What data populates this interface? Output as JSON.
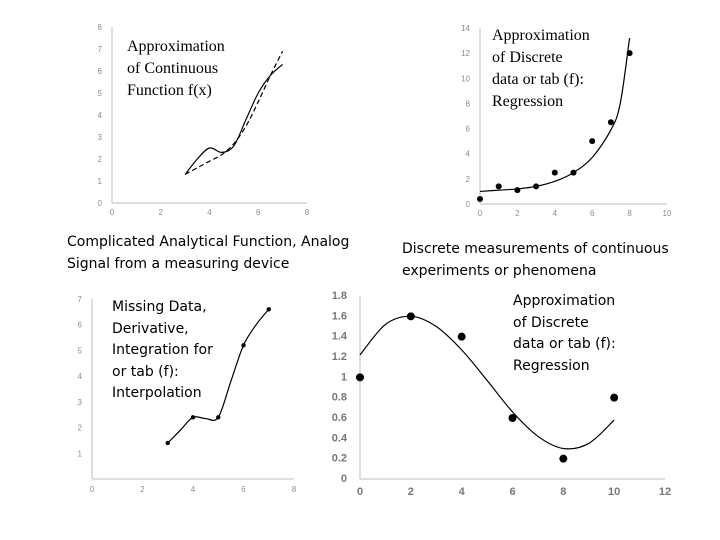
{
  "chart_data": [
    {
      "type": "line",
      "title": "Approximation of Continuous Function f(x)",
      "xlim": [
        0,
        8
      ],
      "ylim": [
        0,
        8
      ],
      "xticks": [
        "0",
        "2",
        "4",
        "6",
        "8"
      ],
      "yticks": [
        "0",
        "1",
        "2",
        "3",
        "4",
        "5",
        "6",
        "7",
        "8"
      ],
      "series": [
        {
          "style": "solid",
          "x": [
            3,
            3.5,
            4,
            4.5,
            5,
            5.5,
            6,
            6.5,
            7
          ],
          "y": [
            1.3,
            2.0,
            2.5,
            2.3,
            2.6,
            3.8,
            5.0,
            5.8,
            6.3
          ]
        },
        {
          "style": "dashed",
          "x": [
            3,
            3.5,
            4,
            4.5,
            5,
            5.5,
            6,
            6.5,
            7
          ],
          "y": [
            1.3,
            1.6,
            1.9,
            2.2,
            2.7,
            3.5,
            4.6,
            5.8,
            6.9
          ]
        }
      ]
    },
    {
      "type": "scatter",
      "title": "Approximation of Discrete data or tab (f): Regression",
      "xlim": [
        0,
        10
      ],
      "ylim": [
        0,
        14
      ],
      "xticks": [
        "0",
        "2",
        "4",
        "6",
        "8",
        "10"
      ],
      "yticks": [
        "0",
        "2",
        "4",
        "6",
        "8",
        "10",
        "12",
        "14"
      ],
      "points": {
        "x": [
          0,
          1,
          2,
          3,
          4,
          5,
          6,
          7,
          8
        ],
        "y": [
          0.4,
          1.4,
          1.1,
          1.4,
          2.5,
          2.5,
          5.0,
          6.5,
          12.0
        ]
      },
      "fit": {
        "x": [
          0,
          1,
          2,
          3,
          4,
          5,
          6,
          7,
          7.5,
          8
        ],
        "y": [
          1.0,
          1.1,
          1.2,
          1.4,
          1.8,
          2.5,
          3.7,
          5.9,
          8.0,
          13.2
        ]
      }
    },
    {
      "type": "scatter",
      "title": "Missing Data, Derivative, Integration for or tab (f): Interpolation",
      "xlim": [
        0,
        8
      ],
      "ylim": [
        0,
        7
      ],
      "xticks": [
        "0",
        "2",
        "4",
        "6",
        "8"
      ],
      "yticks": [
        "1",
        "2",
        "3",
        "4",
        "5",
        "6",
        "7"
      ],
      "points": {
        "x": [
          3,
          4,
          5,
          6,
          7
        ],
        "y": [
          1.4,
          2.4,
          2.4,
          5.2,
          6.6
        ]
      },
      "fit": {
        "x": [
          3,
          3.5,
          4,
          4.5,
          5,
          5.5,
          6,
          6.5,
          7
        ],
        "y": [
          1.4,
          1.9,
          2.4,
          2.35,
          2.4,
          3.8,
          5.2,
          6.0,
          6.6
        ]
      }
    },
    {
      "type": "scatter",
      "title": "Approximation of Discrete data or tab (f): Regression",
      "xlim": [
        0,
        12
      ],
      "ylim": [
        0,
        1.8
      ],
      "xticks": [
        "0",
        "2",
        "4",
        "6",
        "8",
        "10",
        "12"
      ],
      "yticks": [
        "0",
        "0.2",
        "0.4",
        "0.6",
        "0.8",
        "1",
        "1.2",
        "1.4",
        "1.6",
        "1.8"
      ],
      "points": {
        "x": [
          0,
          2,
          4,
          6,
          8,
          10
        ],
        "y": [
          1.0,
          1.6,
          1.4,
          0.6,
          0.2,
          0.8
        ]
      },
      "fit": {
        "x": [
          0,
          1,
          2,
          3,
          4,
          5,
          6,
          7,
          8,
          9,
          10
        ],
        "y": [
          1.22,
          1.52,
          1.6,
          1.5,
          1.27,
          0.97,
          0.66,
          0.42,
          0.3,
          0.35,
          0.58
        ]
      }
    }
  ],
  "labels": {
    "p1": {
      "line1": "Approximation",
      "line2": "of Continuous",
      "line3": "Function f(x)"
    },
    "p2": {
      "line1": "Approximation",
      "line2": "of Discrete",
      "line3": "data or tab (f):",
      "line4": "Regression"
    },
    "p3": {
      "line1": "Missing Data,",
      "line2": "Derivative,",
      "line3": "Integration for",
      "line4": "or tab (f):",
      "line5": "Interpolation"
    },
    "p4": {
      "line1": "Approximation",
      "line2": "of Discrete",
      "line3": "data or tab (f):",
      "line4": "Regression"
    }
  },
  "captions": {
    "left_line1": "Complicated Analytical Function, Analog",
    "left_line2": "Signal from a measuring device",
    "right_line1": "Discrete measurements of continuous",
    "right_line2": "experiments or phenomena"
  }
}
